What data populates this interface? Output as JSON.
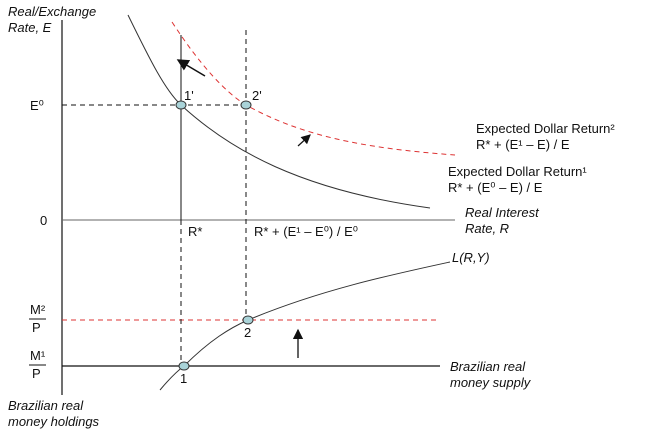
{
  "axes": {
    "y_label": [
      "Real/Exchange",
      "Rate, E"
    ],
    "x_label": [
      "Real Interest",
      "Rate, R"
    ],
    "e0": "E⁰",
    "zero": "0"
  },
  "money": {
    "m2": [
      "M²",
      "P"
    ],
    "m1": [
      "M¹",
      "P"
    ]
  },
  "points": {
    "p1prime": "1'",
    "p2prime": "2'",
    "p1": "1",
    "p2": "2"
  },
  "curves": {
    "return2": [
      "Expected Dollar Return²",
      "R* + (E¹ – E) / E"
    ],
    "return1": [
      "Expected Dollar Return¹",
      "R* + (E⁰ – E) / E"
    ],
    "liquidity": "L(R,Y)",
    "supply": [
      "Brazilian real",
      "money supply"
    ],
    "holdings": [
      "Brazilian real",
      "money holdings"
    ]
  },
  "rates": {
    "r_star": "R*",
    "r_new": "R* + (E¹ – E⁰) / E⁰"
  }
}
